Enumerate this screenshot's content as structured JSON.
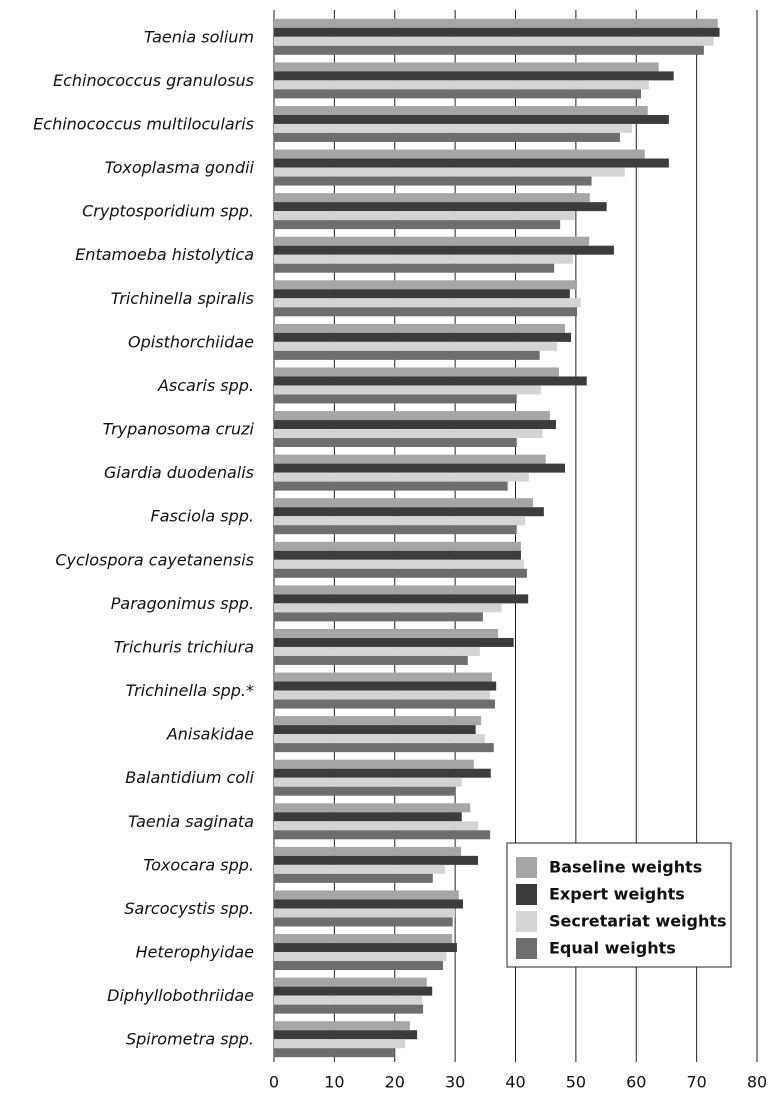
{
  "chart_data": {
    "type": "hbar",
    "categories": [
      "Taenia solium",
      "Echinococcus granulosus",
      "Echinococcus multilocularis",
      "Toxoplasma gondii",
      "Cryptosporidium spp.",
      "Entamoeba histolytica",
      "Trichinella spiralis",
      "Opisthorchiidae",
      "Ascaris spp.",
      "Trypanosoma cruzi",
      "Giardia duodenalis",
      "Fasciola spp.",
      "Cyclospora cayetanensis",
      "Paragonimus spp.",
      "Trichuris trichiura",
      "Trichinella spp.*",
      "Anisakidae",
      "Balantidium coli",
      "Taenia saginata",
      "Toxocara spp.",
      "Sarcocystis spp.",
      "Heterophyidae",
      "Diphyllobothriidae",
      "Spirometra spp."
    ],
    "series": [
      {
        "name": "Baseline weights",
        "color": "#a6a6a6",
        "values": [
          73.5,
          63.7,
          61.9,
          61.4,
          52.3,
          52.2,
          50.2,
          48.2,
          47.2,
          45.7,
          45.0,
          42.9,
          40.9,
          39.9,
          37.1,
          36.1,
          34.3,
          33.1,
          32.5,
          31.0,
          30.6,
          29.5,
          25.3,
          22.5
        ]
      },
      {
        "name": "Expert weights",
        "color": "#3c3c3c",
        "values": [
          73.8,
          66.2,
          65.4,
          65.4,
          55.1,
          56.3,
          49.0,
          49.2,
          51.8,
          46.7,
          48.2,
          44.7,
          40.9,
          42.1,
          39.7,
          36.8,
          33.4,
          35.9,
          31.1,
          33.8,
          31.3,
          30.3,
          26.2,
          23.7
        ]
      },
      {
        "name": "Secretariat weights",
        "color": "#d4d4d4",
        "values": [
          72.8,
          62.1,
          59.3,
          58.1,
          49.8,
          49.5,
          50.8,
          46.9,
          44.2,
          44.5,
          42.2,
          41.6,
          41.4,
          37.7,
          34.1,
          35.8,
          34.9,
          31.1,
          33.8,
          28.3,
          30.0,
          28.6,
          24.5,
          21.7
        ]
      },
      {
        "name": "Equal weights",
        "color": "#6e6e6e",
        "values": [
          71.2,
          60.8,
          57.3,
          52.6,
          47.4,
          46.4,
          50.2,
          44.0,
          40.2,
          40.2,
          38.7,
          40.2,
          41.9,
          34.6,
          32.1,
          36.6,
          36.4,
          30.1,
          35.8,
          26.3,
          29.6,
          28.0,
          24.7,
          20.0
        ]
      }
    ],
    "xlim": [
      0,
      80
    ],
    "xticks": [
      0,
      10,
      20,
      30,
      40,
      50,
      60,
      70,
      80
    ],
    "grid": true,
    "legend": "lower right"
  }
}
